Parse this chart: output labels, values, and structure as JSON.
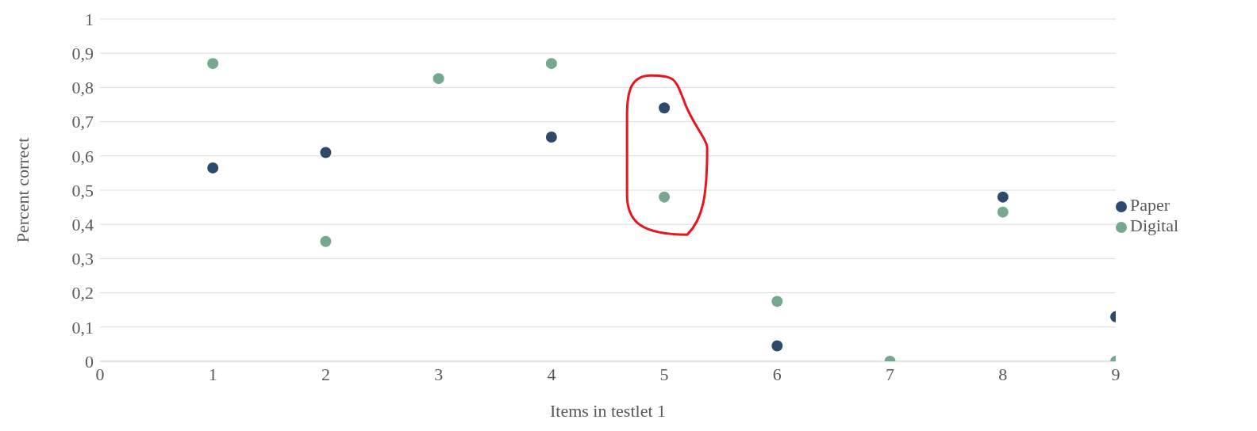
{
  "chart_data": {
    "type": "scatter",
    "xlabel": "Items in testlet 1",
    "ylabel": "Percent correct",
    "x": [
      1,
      2,
      3,
      4,
      5,
      6,
      7,
      8,
      9
    ],
    "series": [
      {
        "name": "Paper",
        "color": "#2e4a6b",
        "values": [
          0.565,
          0.61,
          null,
          0.655,
          0.74,
          0.045,
          null,
          0.48,
          0.13
        ]
      },
      {
        "name": "Digital",
        "color": "#76a88f",
        "values": [
          0.87,
          0.35,
          0.826,
          0.87,
          0.48,
          0.175,
          0,
          0.436,
          0
        ]
      }
    ],
    "xlim": [
      0,
      9
    ],
    "xticks": [
      0,
      1,
      2,
      3,
      4,
      5,
      6,
      7,
      8,
      9
    ],
    "ylim": [
      0,
      1
    ],
    "yticks": [
      0,
      {
        "value": 0.1,
        "label": "0,1"
      },
      {
        "value": 0.2,
        "label": "0,2"
      },
      {
        "value": 0.3,
        "label": "0,3"
      },
      {
        "value": 0.4,
        "label": "0,4"
      },
      {
        "value": 0.5,
        "label": "0,5"
      },
      {
        "value": 0.6,
        "label": "0,6"
      },
      {
        "value": 0.7,
        "label": "0,7"
      },
      {
        "value": 0.8,
        "label": "0,8"
      },
      {
        "value": 0.9,
        "label": "0,9"
      },
      1
    ],
    "grid": "y",
    "legend": "right",
    "marker": "circle"
  }
}
